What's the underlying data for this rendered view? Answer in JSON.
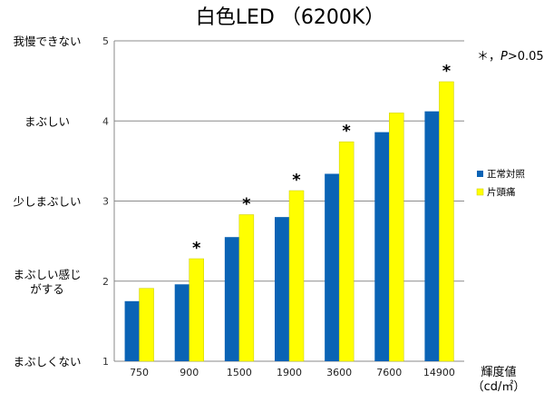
{
  "chart_data": {
    "type": "bar",
    "title": "白色LED （6200K）",
    "categories": [
      "750",
      "900",
      "1500",
      "1900",
      "3600",
      "7600",
      "14900"
    ],
    "series": [
      {
        "name": "正常対照",
        "color": "#0a63b5",
        "values": [
          1.75,
          1.96,
          2.55,
          2.8,
          3.34,
          3.86,
          4.12
        ]
      },
      {
        "name": "片頭痛",
        "color": "#ffff00",
        "values": [
          1.91,
          2.28,
          2.83,
          3.13,
          3.74,
          4.1,
          4.49
        ]
      }
    ],
    "significant": [
      false,
      true,
      true,
      true,
      true,
      false,
      true
    ],
    "significance_marker": "*",
    "note_symbol": "＊，",
    "note_p": "P",
    "note_rest": ">0.05",
    "ylim": [
      1,
      5
    ],
    "yticks": [
      1,
      2,
      3,
      4,
      5
    ],
    "y_level_labels": [
      {
        "value": 5,
        "lines": [
          "我慢できない"
        ]
      },
      {
        "value": 4,
        "lines": [
          "まぶしい"
        ]
      },
      {
        "value": 3,
        "lines": [
          "少しまぶしい"
        ]
      },
      {
        "value": 2,
        "lines": [
          "まぶしい感じ",
          "がする"
        ]
      },
      {
        "value": 1,
        "lines": [
          "まぶしくない"
        ]
      }
    ],
    "xlabel_lines": [
      "輝度値",
      "（cd/㎡）"
    ],
    "grid": true,
    "legend_position": "right"
  }
}
